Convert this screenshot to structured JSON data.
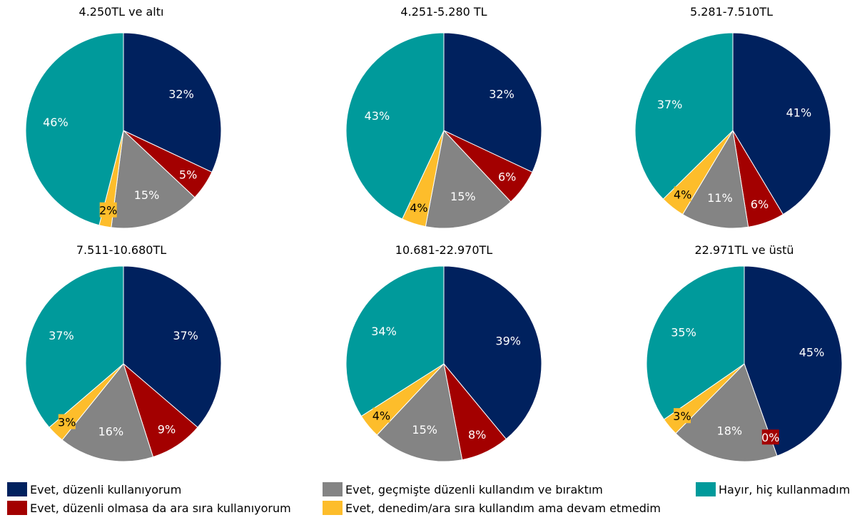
{
  "colors": {
    "series": [
      "#00215e",
      "#a30000",
      "#848484",
      "#fdbd2b",
      "#009a9b"
    ]
  },
  "legend": [
    {
      "label": "Evet, düzenli kullanıyorum",
      "color": "#00215e"
    },
    {
      "label": "Evet, düzenli olmasa da ara sıra kullanıyorum",
      "color": "#a30000"
    },
    {
      "label": "Evet, geçmişte düzenli kullandım ve bıraktım",
      "color": "#848484"
    },
    {
      "label": "Evet, denedim/ara sıra kullandım ama devam etmedim",
      "color": "#fdbd2b"
    },
    {
      "label": "Hayır, hiç kullanmadım",
      "color": "#009a9b"
    }
  ],
  "chart_data": [
    {
      "type": "pie",
      "title": "4.250TL ve altı",
      "labels": [
        "Evet, düzenli kullanıyorum",
        "Evet, düzenli olmasa da ara sıra kullanıyorum",
        "Evet, geçmişte düzenli kullandım ve bıraktım",
        "Evet, denedim/ara sıra kullandım ama devam etmedim",
        "Hayır, hiç kullanmadım"
      ],
      "values": [
        32,
        5,
        15,
        2,
        46
      ],
      "data_labels": [
        "32%",
        "5%",
        "15%",
        "2%",
        "46%"
      ]
    },
    {
      "type": "pie",
      "title": "4.251-5.280 TL",
      "labels": [
        "Evet, düzenli kullanıyorum",
        "Evet, düzenli olmasa da ara sıra kullanıyorum",
        "Evet, geçmişte düzenli kullandım ve bıraktım",
        "Evet, denedim/ara sıra kullandım ama devam etmedim",
        "Hayır, hiç kullanmadım"
      ],
      "values": [
        32,
        6,
        15,
        4,
        43
      ],
      "data_labels": [
        "32%",
        "6%",
        "15%",
        "4%",
        "43%"
      ]
    },
    {
      "type": "pie",
      "title": "5.281-7.510TL",
      "labels": [
        "Evet, düzenli kullanıyorum",
        "Evet, düzenli olmasa da ara sıra kullanıyorum",
        "Evet, geçmişte düzenli kullandım ve bıraktım",
        "Evet, denedim/ara sıra kullandım ama devam etmedim",
        "Hayır, hiç kullanmadım"
      ],
      "values": [
        41,
        6,
        11,
        4,
        37
      ],
      "data_labels": [
        "41%",
        "6%",
        "11%",
        "4%",
        "37%"
      ]
    },
    {
      "type": "pie",
      "title": "7.511-10.680TL",
      "labels": [
        "Evet, düzenli kullanıyorum",
        "Evet, düzenli olmasa da ara sıra kullanıyorum",
        "Evet, geçmişte düzenli kullandım ve bıraktım",
        "Evet, denedim/ara sıra kullandım ama devam etmedim",
        "Hayır, hiç kullanmadım"
      ],
      "values": [
        37,
        9,
        16,
        3,
        37
      ],
      "data_labels": [
        "37%",
        "9%",
        "16%",
        "3%",
        "37%"
      ]
    },
    {
      "type": "pie",
      "title": "10.681-22.970TL",
      "labels": [
        "Evet, düzenli kullanıyorum",
        "Evet, düzenli olmasa da ara sıra kullanıyorum",
        "Evet, geçmişte düzenli kullandım ve bıraktım",
        "Evet, denedim/ara sıra kullandım ama devam etmedim",
        "Hayır, hiç kullanmadım"
      ],
      "values": [
        39,
        8,
        15,
        4,
        34
      ],
      "data_labels": [
        "39%",
        "8%",
        "15%",
        "4%",
        "34%"
      ]
    },
    {
      "type": "pie",
      "title": "22.971TL ve üstü",
      "labels": [
        "Evet, düzenli kullanıyorum",
        "Evet, düzenli olmasa da ara sıra kullanıyorum",
        "Evet, geçmişte düzenli kullandım ve bıraktım",
        "Evet, denedim/ara sıra kullandım ama devam etmedim",
        "Hayır, hiç kullanmadım"
      ],
      "values": [
        45,
        0,
        18,
        3,
        35
      ],
      "data_labels": [
        "45%",
        "0%",
        "18%",
        "3%",
        "35%"
      ]
    }
  ]
}
